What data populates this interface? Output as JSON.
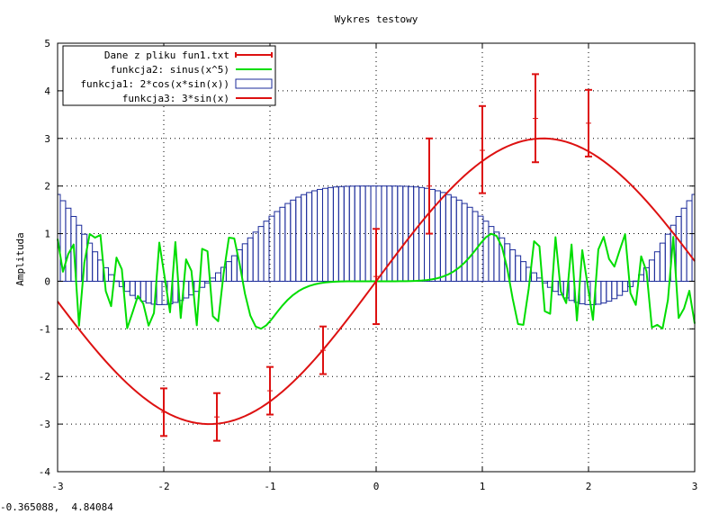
{
  "status_readout": "-0.365088,  4.84084",
  "chart_data": {
    "type": "line",
    "title": "Wykres testowy",
    "xlabel": "",
    "ylabel": "Amplituda",
    "xlim": [
      -3,
      3
    ],
    "ylim": [
      -4,
      5
    ],
    "xticks": [
      -3,
      -2,
      -1,
      0,
      1,
      2,
      3
    ],
    "yticks": [
      -4,
      -3,
      -2,
      -1,
      0,
      1,
      2,
      3,
      4,
      5
    ],
    "grid": true,
    "legend_position": "top-left",
    "series": [
      {
        "name": "Dane z pliku fun1.txt",
        "kind": "errorbars",
        "color": "#dd1111",
        "points": [
          {
            "x": -2.0,
            "y": -2.75,
            "ylow": -3.25,
            "yhigh": -2.25
          },
          {
            "x": -1.5,
            "y": -2.85,
            "ylow": -3.35,
            "yhigh": -2.35
          },
          {
            "x": -1.0,
            "y": -2.3,
            "ylow": -2.8,
            "yhigh": -1.8
          },
          {
            "x": -0.5,
            "y": -1.45,
            "ylow": -1.95,
            "yhigh": -0.95
          },
          {
            "x": 0.0,
            "y": 0.1,
            "ylow": -0.9,
            "yhigh": 1.1
          },
          {
            "x": 0.5,
            "y": 2.0,
            "ylow": 1.0,
            "yhigh": 3.0
          },
          {
            "x": 1.0,
            "y": 2.75,
            "ylow": 1.85,
            "yhigh": 3.68
          },
          {
            "x": 1.5,
            "y": 3.42,
            "ylow": 2.5,
            "yhigh": 4.35
          },
          {
            "x": 2.0,
            "y": 3.32,
            "ylow": 2.62,
            "yhigh": 4.02
          }
        ]
      },
      {
        "name": "funkcja2: sinus(x^5)",
        "kind": "line",
        "color": "#00dd00",
        "function": "sin(x^5)",
        "samples": 120
      },
      {
        "name": "funkcja1: 2*cos(x*sin(x))",
        "kind": "impulses-boxes",
        "color": "#1a2a9a",
        "function": "2*cos(x*sin(x))",
        "samples": 120
      },
      {
        "name": "funkcja3: 3*sin(x)",
        "kind": "line",
        "color": "#dd1111",
        "function": "3*sin(x)",
        "samples": 120
      }
    ]
  }
}
